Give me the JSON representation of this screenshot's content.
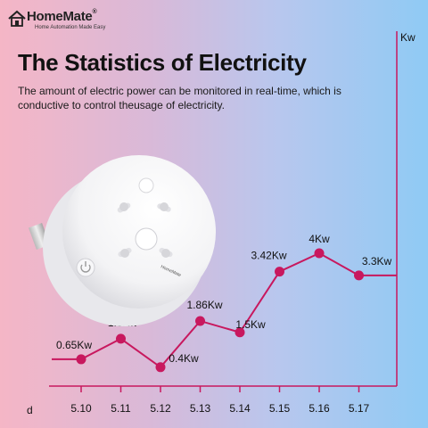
{
  "brand": {
    "name": "HomeMate",
    "registered": "®",
    "tagline": "Home Automation Made Easy"
  },
  "headline": "The Statistics of Electricity",
  "description": "The amount of electric power can be monitored in real-time, which is conductive to control theusage of electricity.",
  "chart_data": {
    "type": "line",
    "ylabel": "Kw",
    "xlabel": "d",
    "categories": [
      "5.10",
      "5.11",
      "5.12",
      "5.13",
      "5.14",
      "5.15",
      "5.16",
      "5.17"
    ],
    "series": [
      {
        "values": [
          0.65,
          1.3,
          0.4,
          1.86,
          1.5,
          3.42,
          4,
          3.3
        ]
      }
    ],
    "point_labels": [
      "0.65Kw",
      "1.3Kw",
      "0.4Kw",
      "1.86Kw",
      "1.5Kw",
      "3.42Kw",
      "4Kw",
      "3.3Kw"
    ],
    "line_color": "#c8185e",
    "axis_color": "#c8185e"
  },
  "colors": {
    "bg_left": "#f5b6c6",
    "bg_right": "#8fcaf4",
    "accent": "#c8185e"
  },
  "product": {
    "icon": "smart-plug-image",
    "mini_brand": "HomeMate"
  }
}
